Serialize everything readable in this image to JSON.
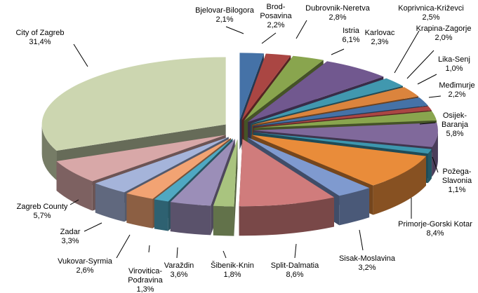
{
  "chart_data": {
    "type": "pie",
    "style": "exploded 3D pie",
    "title": "",
    "legend": "none",
    "slices": [
      {
        "name": "Bjelovar-Bilogora",
        "value": 2.1,
        "label": "2,1%",
        "color": "#4572A7"
      },
      {
        "name": "Brod-Posavina",
        "value": 2.2,
        "label": "2,2%",
        "color": "#AA4643"
      },
      {
        "name": "Dubrovnik-Neretva",
        "value": 2.8,
        "label": "2,8%",
        "color": "#89A54E"
      },
      {
        "name": "Istria",
        "value": 6.1,
        "label": "6,1%",
        "color": "#71588F"
      },
      {
        "name": "Karlovac",
        "value": 2.3,
        "label": "2,3%",
        "color": "#4198AF"
      },
      {
        "name": "Koprivnica-Križevci",
        "value": 2.5,
        "label": "2,5%",
        "color": "#DB843D"
      },
      {
        "name": "Krapina-Zagorje",
        "value": 2.0,
        "label": "2,0%",
        "color": "#4572A7"
      },
      {
        "name": "Lika-Senj",
        "value": 1.0,
        "label": "1,0%",
        "color": "#AA4643"
      },
      {
        "name": "Međimurje",
        "value": 2.2,
        "label": "2,2%",
        "color": "#89A54E"
      },
      {
        "name": "Osijek-Baranja",
        "value": 5.8,
        "label": "5,8%",
        "color": "#80699B"
      },
      {
        "name": "Požega-Slavonia",
        "value": 1.1,
        "label": "1,1%",
        "color": "#3D96AE"
      },
      {
        "name": "Primorje-Gorski Kotar",
        "value": 8.4,
        "label": "8,4%",
        "color": "#E98C3A"
      },
      {
        "name": "Sisak-Moslavina",
        "value": 3.2,
        "label": "3,2%",
        "color": "#7F9ACF"
      },
      {
        "name": "Split-Dalmatia",
        "value": 8.6,
        "label": "8,6%",
        "color": "#D07C7C"
      },
      {
        "name": "Šibenik-Knin",
        "value": 1.8,
        "label": "1,8%",
        "color": "#A9C47F"
      },
      {
        "name": "Varaždin",
        "value": 3.6,
        "label": "3,6%",
        "color": "#9B8EB8"
      },
      {
        "name": "Virovitica-Podravina",
        "value": 1.3,
        "label": "1,3%",
        "color": "#4FA8C2"
      },
      {
        "name": "Vukovar-Syrmia",
        "value": 2.6,
        "label": "2,6%",
        "color": "#F2A373"
      },
      {
        "name": "Zadar",
        "value": 3.3,
        "label": "3,3%",
        "color": "#A5B4DA"
      },
      {
        "name": "Zagreb County",
        "value": 5.7,
        "label": "5,7%",
        "color": "#D8A8A8"
      },
      {
        "name": "City of Zagreb",
        "value": 31.4,
        "label": "31,4%",
        "color": "#CCD6B0"
      }
    ]
  }
}
